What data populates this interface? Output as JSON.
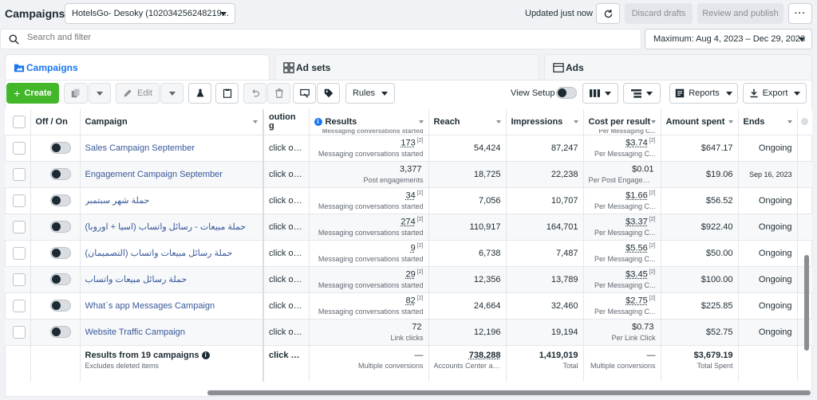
{
  "header": {
    "title": "Campaigns",
    "account": "HotelsGo- Desoky (102034256248219...",
    "updated": "Updated just now",
    "discard_label": "Discard drafts",
    "publish_label": "Review and publish",
    "more_label": "···"
  },
  "search": {
    "placeholder": "Search and filter"
  },
  "date_range": "Maximum: Aug 4, 2023 – Dec 29, 2023",
  "tabs": [
    {
      "label": "Campaigns"
    },
    {
      "label": "Ad sets"
    },
    {
      "label": "Ads"
    }
  ],
  "toolbar": {
    "create": "Create",
    "edit": "Edit",
    "rules": "Rules",
    "view_setup": "View Setup",
    "reports": "Reports",
    "export": "Export"
  },
  "columns": {
    "offon": "Off / On",
    "campaign": "Campaign",
    "attribution": "...oution\ng",
    "attribution_l1": "oution",
    "attribution_l2": "g",
    "results": "Results",
    "results_peek": "Messaging conversations started",
    "reach": "Reach",
    "impressions": "Impressions",
    "cpr": "Cost per result",
    "cpr_peek": "Per Messaging C...",
    "spent": "Amount spent",
    "ends": "Ends"
  },
  "rows": [
    {
      "name": "Sales Campaign September",
      "attr": "click or 1...",
      "result": "173",
      "result_sup": "[2]",
      "result_sub": "Messaging conversations started",
      "reach": "54,424",
      "impressions": "87,247",
      "cpr": "$3.74",
      "cpr_sup": "[2]",
      "cpr_sub": "Per Messaging C...",
      "spent": "$647.17",
      "ends": "Ongoing"
    },
    {
      "name": "Engagement Campaign September",
      "attr": "click or 1...",
      "result": "3,377",
      "result_sup": "",
      "result_sub": "Post engagements",
      "reach": "18,725",
      "impressions": "22,238",
      "cpr": "$0.01",
      "cpr_sup": "",
      "cpr_sub": "Per Post Engagement",
      "spent": "$19.06",
      "ends": "Sep 16, 2023"
    },
    {
      "name": "حملة شهر سبتمبر",
      "attr": "click or 1...",
      "result": "34",
      "result_sup": "[2]",
      "result_sub": "Messaging conversations started",
      "reach": "7,056",
      "impressions": "10,707",
      "cpr": "$1.66",
      "cpr_sup": "[2]",
      "cpr_sub": "Per Messaging C...",
      "spent": "$56.52",
      "ends": "Ongoing"
    },
    {
      "name": "حملة مبيعات - رسائل واتساب (اسيا + اوروبا)",
      "attr": "click or 1...",
      "result": "274",
      "result_sup": "[2]",
      "result_sub": "Messaging conversations started",
      "reach": "110,917",
      "impressions": "164,701",
      "cpr": "$3.37",
      "cpr_sup": "[2]",
      "cpr_sub": "Per Messaging C...",
      "spent": "$922.40",
      "ends": "Ongoing"
    },
    {
      "name": "حملة رسائل مبيعات واتساب (التصميمان)",
      "attr": "click or 1...",
      "result": "9",
      "result_sup": "[2]",
      "result_sub": "Messaging conversations started",
      "reach": "6,738",
      "impressions": "7,487",
      "cpr": "$5.56",
      "cpr_sup": "[2]",
      "cpr_sub": "Per Messaging C...",
      "spent": "$50.00",
      "ends": "Ongoing"
    },
    {
      "name": "حملة رسائل مبيعات واتساب",
      "attr": "click or 1...",
      "result": "29",
      "result_sup": "[2]",
      "result_sub": "Messaging conversations started",
      "reach": "12,356",
      "impressions": "13,789",
      "cpr": "$3.45",
      "cpr_sup": "[2]",
      "cpr_sub": "Per Messaging C...",
      "spent": "$100.00",
      "ends": "Ongoing"
    },
    {
      "name": "What`s app Messages Campaign",
      "attr": "click or 1...",
      "result": "82",
      "result_sup": "[2]",
      "result_sub": "Messaging conversations started",
      "reach": "24,664",
      "impressions": "32,460",
      "cpr": "$2.75",
      "cpr_sup": "[2]",
      "cpr_sub": "Per Messaging C...",
      "spent": "$225.85",
      "ends": "Ongoing"
    },
    {
      "name": "Website Traffic Campaign",
      "attr": "click or 1...",
      "result": "72",
      "result_sup": "",
      "result_sub": "Link clicks",
      "reach": "12,196",
      "impressions": "19,194",
      "cpr": "$0.73",
      "cpr_sup": "",
      "cpr_sub": "Per Link Click",
      "spent": "$52.75",
      "ends": "Ongoing"
    }
  ],
  "totals": {
    "label": "Results from 19 campaigns",
    "sub": "Excludes deleted items",
    "attr": "click or ...",
    "result": "—",
    "result_sub": "Multiple conversions",
    "reach": "738,288",
    "reach_sub": "Accounts Center ac...",
    "impressions": "1,419,019",
    "impressions_sub": "Total",
    "cpr": "—",
    "cpr_sub": "Multiple conversions",
    "spent": "$3,679.19",
    "spent_sub": "Total Spent"
  }
}
